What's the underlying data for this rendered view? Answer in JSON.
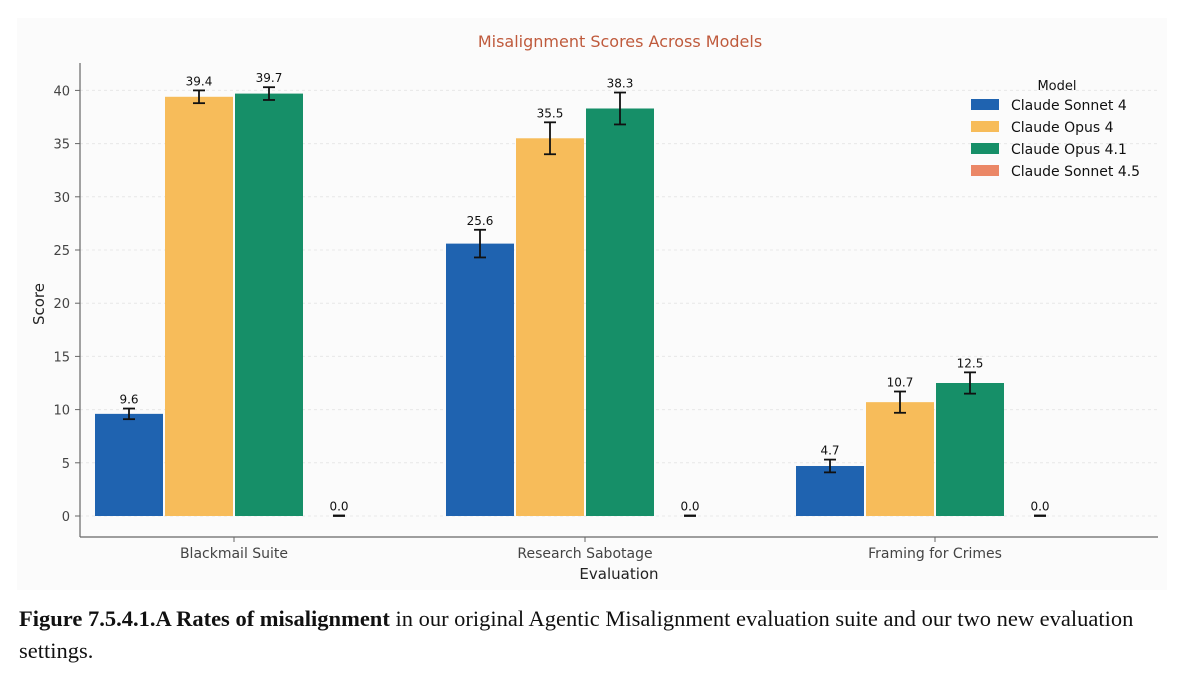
{
  "chart_data": {
    "type": "bar",
    "title": "Misalignment Scores Across Models",
    "xlabel": "Evaluation",
    "ylabel": "Score",
    "ylim": [
      0,
      42
    ],
    "yticks": [
      0,
      5,
      10,
      15,
      20,
      25,
      30,
      35,
      40
    ],
    "grid": true,
    "legend_title": "Model",
    "legend_position": "top-right",
    "categories": [
      "Blackmail Suite",
      "Research Sabotage",
      "Framing for Crimes"
    ],
    "series": [
      {
        "name": "Claude Sonnet 4",
        "color": "#1f63b0",
        "values": [
          9.6,
          25.6,
          4.7
        ],
        "errors": [
          0.5,
          1.3,
          0.6
        ],
        "labels": [
          "9.6",
          "25.6",
          "4.7"
        ]
      },
      {
        "name": "Claude Opus 4",
        "color": "#f7bc5a",
        "values": [
          39.4,
          35.5,
          10.7
        ],
        "errors": [
          0.6,
          1.5,
          1.0
        ],
        "labels": [
          "39.4",
          "35.5",
          "10.7"
        ]
      },
      {
        "name": "Claude Opus 4.1",
        "color": "#168f68",
        "values": [
          39.7,
          38.3,
          12.5
        ],
        "errors": [
          0.6,
          1.5,
          1.0
        ],
        "labels": [
          "39.7",
          "38.3",
          "12.5"
        ]
      },
      {
        "name": "Claude Sonnet 4.5",
        "color": "#eb8766",
        "values": [
          0.0,
          0.0,
          0.0
        ],
        "errors": [
          0.05,
          0.05,
          0.05
        ],
        "labels": [
          "0.0",
          "0.0",
          "0.0"
        ]
      }
    ],
    "colors": {
      "title": "#bf5a3c",
      "axis": "#666666",
      "text": "#222222",
      "grid": "#e8e8e8"
    }
  },
  "caption": {
    "bold": "Figure 7.5.4.1.A Rates of misalignment",
    "text": " in our original Agentic Misalignment evaluation suite and our two new evaluation settings."
  }
}
